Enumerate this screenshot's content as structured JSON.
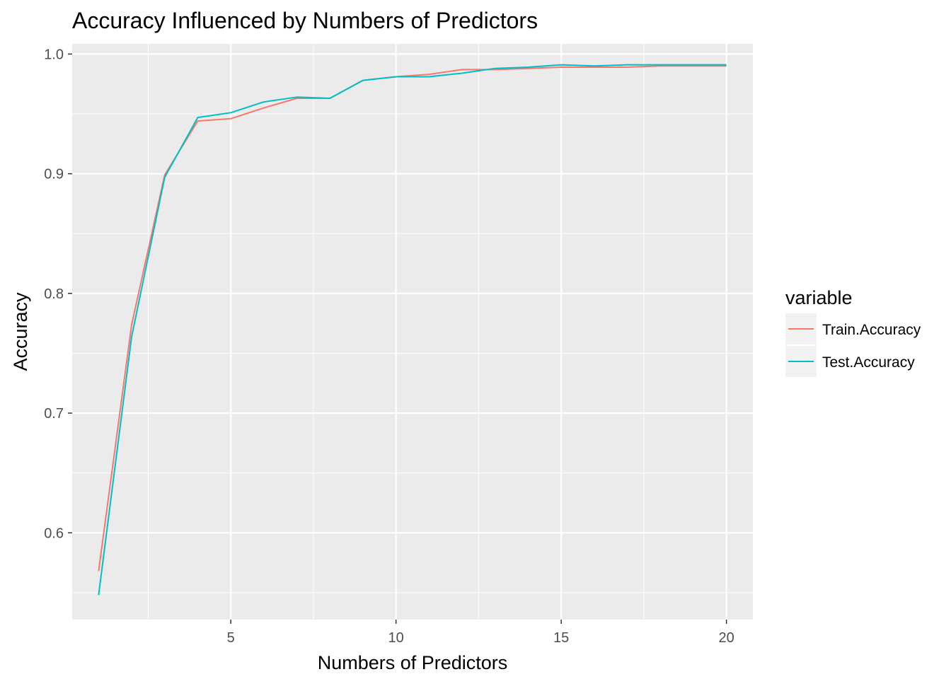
{
  "chart_data": {
    "type": "line",
    "title": "Accuracy Influenced by Numbers of Predictors",
    "xlabel": "Numbers of Predictors",
    "ylabel": "Accuracy",
    "xlim": [
      0.2,
      20.8
    ],
    "ylim": [
      0.5275,
      1.0085
    ],
    "x_ticks": [
      5,
      10,
      15,
      20
    ],
    "x_tick_labels": [
      "5",
      "10",
      "15",
      "20"
    ],
    "y_ticks": [
      0.6,
      0.7,
      0.8,
      0.9,
      1.0
    ],
    "y_tick_labels": [
      "0.6",
      "0.7",
      "0.8",
      "0.9",
      "1.0"
    ],
    "grid": true,
    "legend": {
      "title": "variable",
      "position": "right"
    },
    "x": [
      1,
      2,
      3,
      4,
      5,
      6,
      7,
      8,
      9,
      10,
      11,
      12,
      13,
      14,
      15,
      16,
      17,
      18,
      19,
      20
    ],
    "series": [
      {
        "name": "Train.Accuracy",
        "color": "#F8766D",
        "values": [
          0.568,
          0.774,
          0.899,
          0.944,
          0.946,
          0.955,
          0.963,
          0.963,
          0.978,
          0.981,
          0.983,
          0.987,
          0.987,
          0.988,
          0.989,
          0.989,
          0.989,
          0.99,
          0.99,
          0.99
        ]
      },
      {
        "name": "Test.Accuracy",
        "color": "#00BFC4",
        "values": [
          0.548,
          0.764,
          0.897,
          0.947,
          0.951,
          0.96,
          0.964,
          0.963,
          0.978,
          0.981,
          0.981,
          0.984,
          0.988,
          0.989,
          0.991,
          0.99,
          0.991,
          0.991,
          0.991,
          0.991
        ]
      }
    ]
  }
}
